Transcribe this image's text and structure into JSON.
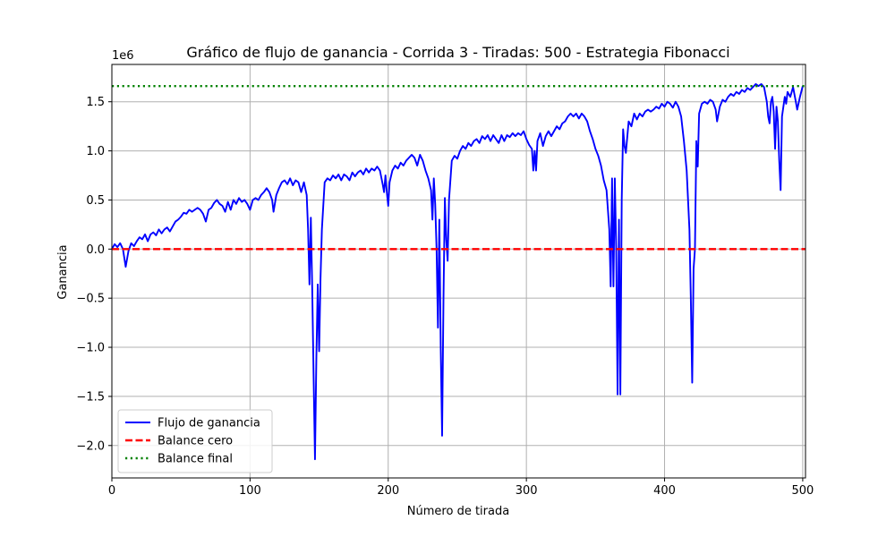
{
  "chart_data": {
    "type": "line",
    "title": "Gráfico de flujo de ganancia - Corrida 3 - Tiradas: 500 - Estrategia Fibonacci",
    "xlabel": "Número de tirada",
    "ylabel": "Ganancia",
    "y_offset_label": "1e6",
    "xlim": [
      0,
      502
    ],
    "ylim": [
      -2.33,
      1.88
    ],
    "x_ticks": [
      0,
      100,
      200,
      300,
      400,
      500
    ],
    "x_tick_labels": [
      "0",
      "100",
      "200",
      "300",
      "400",
      "500"
    ],
    "y_ticks": [
      -2.0,
      -1.5,
      -1.0,
      -0.5,
      0.0,
      0.5,
      1.0,
      1.5
    ],
    "y_tick_labels": [
      "−2.0",
      "−1.5",
      "−1.0",
      "−0.5",
      "0.0",
      "0.5",
      "1.0",
      "1.5"
    ],
    "grid": true,
    "legend_position": "lower-left",
    "series": [
      {
        "name": "Flujo de ganancia",
        "color": "#0000ff",
        "style": "solid",
        "points": [
          [
            0,
            0.0
          ],
          [
            2,
            0.05
          ],
          [
            4,
            0.02
          ],
          [
            6,
            0.06
          ],
          [
            8,
            0.0
          ],
          [
            10,
            -0.18
          ],
          [
            12,
            -0.02
          ],
          [
            14,
            0.06
          ],
          [
            16,
            0.03
          ],
          [
            18,
            0.08
          ],
          [
            20,
            0.12
          ],
          [
            22,
            0.1
          ],
          [
            24,
            0.15
          ],
          [
            26,
            0.08
          ],
          [
            28,
            0.15
          ],
          [
            30,
            0.17
          ],
          [
            32,
            0.14
          ],
          [
            34,
            0.2
          ],
          [
            36,
            0.16
          ],
          [
            38,
            0.2
          ],
          [
            40,
            0.22
          ],
          [
            42,
            0.18
          ],
          [
            44,
            0.23
          ],
          [
            46,
            0.28
          ],
          [
            48,
            0.3
          ],
          [
            50,
            0.33
          ],
          [
            52,
            0.37
          ],
          [
            54,
            0.36
          ],
          [
            56,
            0.4
          ],
          [
            58,
            0.38
          ],
          [
            60,
            0.4
          ],
          [
            62,
            0.42
          ],
          [
            64,
            0.4
          ],
          [
            66,
            0.36
          ],
          [
            68,
            0.28
          ],
          [
            70,
            0.4
          ],
          [
            72,
            0.42
          ],
          [
            74,
            0.47
          ],
          [
            76,
            0.5
          ],
          [
            78,
            0.46
          ],
          [
            80,
            0.44
          ],
          [
            82,
            0.38
          ],
          [
            84,
            0.48
          ],
          [
            86,
            0.4
          ],
          [
            88,
            0.5
          ],
          [
            90,
            0.46
          ],
          [
            92,
            0.52
          ],
          [
            94,
            0.48
          ],
          [
            96,
            0.5
          ],
          [
            98,
            0.46
          ],
          [
            100,
            0.4
          ],
          [
            102,
            0.5
          ],
          [
            104,
            0.52
          ],
          [
            106,
            0.5
          ],
          [
            108,
            0.55
          ],
          [
            110,
            0.58
          ],
          [
            112,
            0.62
          ],
          [
            114,
            0.58
          ],
          [
            116,
            0.5
          ],
          [
            117,
            0.38
          ],
          [
            119,
            0.55
          ],
          [
            121,
            0.62
          ],
          [
            123,
            0.68
          ],
          [
            125,
            0.7
          ],
          [
            127,
            0.66
          ],
          [
            129,
            0.72
          ],
          [
            131,
            0.65
          ],
          [
            133,
            0.7
          ],
          [
            135,
            0.68
          ],
          [
            137,
            0.58
          ],
          [
            139,
            0.68
          ],
          [
            141,
            0.55
          ],
          [
            142,
            0.2
          ],
          [
            143,
            -0.36
          ],
          [
            144,
            0.32
          ],
          [
            145,
            -0.4
          ],
          [
            146,
            -1.3
          ],
          [
            147,
            -2.14
          ],
          [
            148,
            -1.1
          ],
          [
            149,
            -0.36
          ],
          [
            150,
            -1.04
          ],
          [
            151,
            -0.3
          ],
          [
            152,
            0.2
          ],
          [
            154,
            0.68
          ],
          [
            156,
            0.72
          ],
          [
            158,
            0.7
          ],
          [
            160,
            0.75
          ],
          [
            162,
            0.72
          ],
          [
            164,
            0.76
          ],
          [
            166,
            0.7
          ],
          [
            168,
            0.76
          ],
          [
            170,
            0.74
          ],
          [
            172,
            0.7
          ],
          [
            174,
            0.78
          ],
          [
            176,
            0.74
          ],
          [
            178,
            0.78
          ],
          [
            180,
            0.8
          ],
          [
            182,
            0.76
          ],
          [
            184,
            0.82
          ],
          [
            186,
            0.78
          ],
          [
            188,
            0.82
          ],
          [
            190,
            0.8
          ],
          [
            192,
            0.84
          ],
          [
            194,
            0.8
          ],
          [
            196,
            0.66
          ],
          [
            197,
            0.58
          ],
          [
            198,
            0.75
          ],
          [
            199,
            0.58
          ],
          [
            200,
            0.44
          ],
          [
            201,
            0.68
          ],
          [
            203,
            0.8
          ],
          [
            205,
            0.85
          ],
          [
            207,
            0.82
          ],
          [
            209,
            0.88
          ],
          [
            211,
            0.85
          ],
          [
            213,
            0.9
          ],
          [
            215,
            0.93
          ],
          [
            217,
            0.96
          ],
          [
            219,
            0.93
          ],
          [
            221,
            0.85
          ],
          [
            223,
            0.96
          ],
          [
            225,
            0.9
          ],
          [
            227,
            0.8
          ],
          [
            229,
            0.72
          ],
          [
            231,
            0.6
          ],
          [
            232,
            0.3
          ],
          [
            233,
            0.72
          ],
          [
            234,
            0.46
          ],
          [
            235,
            0.0
          ],
          [
            236,
            -0.8
          ],
          [
            237,
            0.3
          ],
          [
            238,
            -1.0
          ],
          [
            239,
            -1.9
          ],
          [
            240,
            -0.5
          ],
          [
            241,
            0.52
          ],
          [
            242,
            0.1
          ],
          [
            243,
            -0.12
          ],
          [
            244,
            0.5
          ],
          [
            246,
            0.9
          ],
          [
            248,
            0.95
          ],
          [
            250,
            0.92
          ],
          [
            252,
            1.0
          ],
          [
            254,
            1.05
          ],
          [
            256,
            1.02
          ],
          [
            258,
            1.08
          ],
          [
            260,
            1.05
          ],
          [
            262,
            1.1
          ],
          [
            264,
            1.12
          ],
          [
            266,
            1.08
          ],
          [
            268,
            1.15
          ],
          [
            270,
            1.12
          ],
          [
            272,
            1.16
          ],
          [
            274,
            1.1
          ],
          [
            276,
            1.16
          ],
          [
            278,
            1.12
          ],
          [
            280,
            1.08
          ],
          [
            282,
            1.16
          ],
          [
            284,
            1.1
          ],
          [
            286,
            1.16
          ],
          [
            288,
            1.14
          ],
          [
            290,
            1.18
          ],
          [
            292,
            1.15
          ],
          [
            294,
            1.18
          ],
          [
            296,
            1.16
          ],
          [
            298,
            1.2
          ],
          [
            300,
            1.12
          ],
          [
            302,
            1.06
          ],
          [
            304,
            1.02
          ],
          [
            305,
            0.8
          ],
          [
            306,
            1.0
          ],
          [
            307,
            0.8
          ],
          [
            308,
            1.1
          ],
          [
            310,
            1.18
          ],
          [
            312,
            1.05
          ],
          [
            314,
            1.15
          ],
          [
            316,
            1.2
          ],
          [
            318,
            1.15
          ],
          [
            320,
            1.2
          ],
          [
            322,
            1.25
          ],
          [
            324,
            1.22
          ],
          [
            326,
            1.28
          ],
          [
            328,
            1.3
          ],
          [
            330,
            1.35
          ],
          [
            332,
            1.38
          ],
          [
            334,
            1.35
          ],
          [
            336,
            1.38
          ],
          [
            338,
            1.33
          ],
          [
            340,
            1.38
          ],
          [
            342,
            1.35
          ],
          [
            344,
            1.3
          ],
          [
            346,
            1.2
          ],
          [
            348,
            1.12
          ],
          [
            350,
            1.02
          ],
          [
            352,
            0.95
          ],
          [
            354,
            0.85
          ],
          [
            356,
            0.7
          ],
          [
            358,
            0.6
          ],
          [
            360,
            0.2
          ],
          [
            361,
            -0.38
          ],
          [
            362,
            0.72
          ],
          [
            363,
            -0.38
          ],
          [
            364,
            0.72
          ],
          [
            365,
            0.0
          ],
          [
            366,
            -1.48
          ],
          [
            367,
            0.3
          ],
          [
            368,
            -1.48
          ],
          [
            369,
            0.5
          ],
          [
            370,
            1.22
          ],
          [
            371,
            1.05
          ],
          [
            372,
            0.98
          ],
          [
            374,
            1.3
          ],
          [
            376,
            1.25
          ],
          [
            378,
            1.38
          ],
          [
            380,
            1.32
          ],
          [
            382,
            1.38
          ],
          [
            384,
            1.35
          ],
          [
            386,
            1.4
          ],
          [
            388,
            1.42
          ],
          [
            390,
            1.4
          ],
          [
            392,
            1.42
          ],
          [
            394,
            1.45
          ],
          [
            396,
            1.43
          ],
          [
            398,
            1.48
          ],
          [
            400,
            1.45
          ],
          [
            402,
            1.5
          ],
          [
            404,
            1.48
          ],
          [
            406,
            1.44
          ],
          [
            408,
            1.5
          ],
          [
            410,
            1.45
          ],
          [
            412,
            1.35
          ],
          [
            414,
            1.1
          ],
          [
            416,
            0.8
          ],
          [
            418,
            0.2
          ],
          [
            419,
            -0.5
          ],
          [
            420,
            -1.36
          ],
          [
            421,
            -0.2
          ],
          [
            422,
            0.0
          ],
          [
            423,
            1.1
          ],
          [
            424,
            0.84
          ],
          [
            425,
            1.38
          ],
          [
            427,
            1.48
          ],
          [
            429,
            1.5
          ],
          [
            431,
            1.48
          ],
          [
            433,
            1.52
          ],
          [
            435,
            1.5
          ],
          [
            437,
            1.42
          ],
          [
            438,
            1.3
          ],
          [
            440,
            1.45
          ],
          [
            442,
            1.52
          ],
          [
            444,
            1.5
          ],
          [
            446,
            1.55
          ],
          [
            448,
            1.58
          ],
          [
            450,
            1.56
          ],
          [
            452,
            1.6
          ],
          [
            454,
            1.58
          ],
          [
            456,
            1.62
          ],
          [
            458,
            1.6
          ],
          [
            460,
            1.64
          ],
          [
            462,
            1.62
          ],
          [
            464,
            1.65
          ],
          [
            466,
            1.68
          ],
          [
            468,
            1.66
          ],
          [
            470,
            1.68
          ],
          [
            472,
            1.65
          ],
          [
            474,
            1.5
          ],
          [
            475,
            1.35
          ],
          [
            476,
            1.28
          ],
          [
            477,
            1.5
          ],
          [
            478,
            1.55
          ],
          [
            479,
            1.4
          ],
          [
            480,
            1.02
          ],
          [
            481,
            1.45
          ],
          [
            482,
            1.3
          ],
          [
            483,
            0.9
          ],
          [
            484,
            0.6
          ],
          [
            485,
            1.35
          ],
          [
            486,
            1.45
          ],
          [
            487,
            1.55
          ],
          [
            488,
            1.48
          ],
          [
            489,
            1.6
          ],
          [
            491,
            1.55
          ],
          [
            493,
            1.65
          ],
          [
            495,
            1.5
          ],
          [
            496,
            1.42
          ],
          [
            498,
            1.55
          ],
          [
            500,
            1.66
          ]
        ]
      },
      {
        "name": "Balance cero",
        "color": "#ff0000",
        "style": "dashed",
        "value": 0.0
      },
      {
        "name": "Balance final",
        "color": "#008000",
        "style": "dotted",
        "value": 1.66
      }
    ]
  }
}
